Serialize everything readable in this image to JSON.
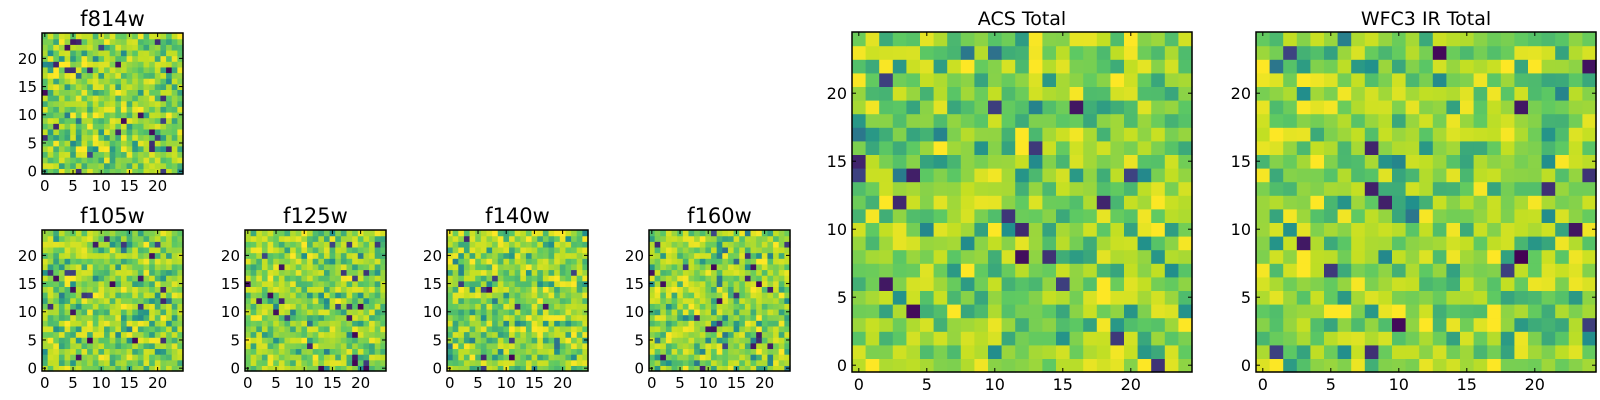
{
  "chart_data": [
    {
      "id": "f814w",
      "type": "heatmap",
      "title": "f814w",
      "nx": 25,
      "ny": 25,
      "xticks": [
        "0",
        "5",
        "10",
        "15",
        "20"
      ],
      "yticks": [
        "0",
        "5",
        "10",
        "15",
        "20"
      ],
      "seed": 814,
      "colormap": "viridis"
    },
    {
      "id": "f105w",
      "type": "heatmap",
      "title": "f105w",
      "nx": 25,
      "ny": 25,
      "xticks": [
        "0",
        "5",
        "10",
        "15",
        "20"
      ],
      "yticks": [
        "0",
        "5",
        "10",
        "15",
        "20"
      ],
      "seed": 105,
      "colormap": "viridis"
    },
    {
      "id": "f125w",
      "type": "heatmap",
      "title": "f125w",
      "nx": 25,
      "ny": 25,
      "xticks": [
        "0",
        "5",
        "10",
        "15",
        "20"
      ],
      "yticks": [
        "0",
        "5",
        "10",
        "15",
        "20"
      ],
      "seed": 125,
      "colormap": "viridis"
    },
    {
      "id": "f140w",
      "type": "heatmap",
      "title": "f140w",
      "nx": 25,
      "ny": 25,
      "xticks": [
        "0",
        "5",
        "10",
        "15",
        "20"
      ],
      "yticks": [
        "0",
        "5",
        "10",
        "15",
        "20"
      ],
      "seed": 140,
      "colormap": "viridis"
    },
    {
      "id": "f160w",
      "type": "heatmap",
      "title": "f160w",
      "nx": 25,
      "ny": 25,
      "xticks": [
        "0",
        "5",
        "10",
        "15",
        "20"
      ],
      "yticks": [
        "0",
        "5",
        "10",
        "15",
        "20"
      ],
      "seed": 160,
      "colormap": "viridis"
    },
    {
      "id": "acs-total",
      "type": "heatmap",
      "title": "ACS Total",
      "nx": 25,
      "ny": 25,
      "xticks": [
        "0",
        "5",
        "10",
        "15",
        "20"
      ],
      "yticks": [
        "0",
        "5",
        "10",
        "15",
        "20"
      ],
      "seed": 2001,
      "colormap": "viridis"
    },
    {
      "id": "wfc3-ir-total",
      "type": "heatmap",
      "title": "WFC3 IR Total",
      "nx": 25,
      "ny": 25,
      "xticks": [
        "0",
        "5",
        "10",
        "15",
        "20"
      ],
      "yticks": [
        "0",
        "5",
        "10",
        "15",
        "20"
      ],
      "seed": 3003,
      "colormap": "viridis"
    }
  ],
  "colors": {
    "viridis": [
      "#440154",
      "#3b528b",
      "#21908c",
      "#5dc963",
      "#c2df23",
      "#fde725"
    ],
    "axis": "#000000"
  }
}
